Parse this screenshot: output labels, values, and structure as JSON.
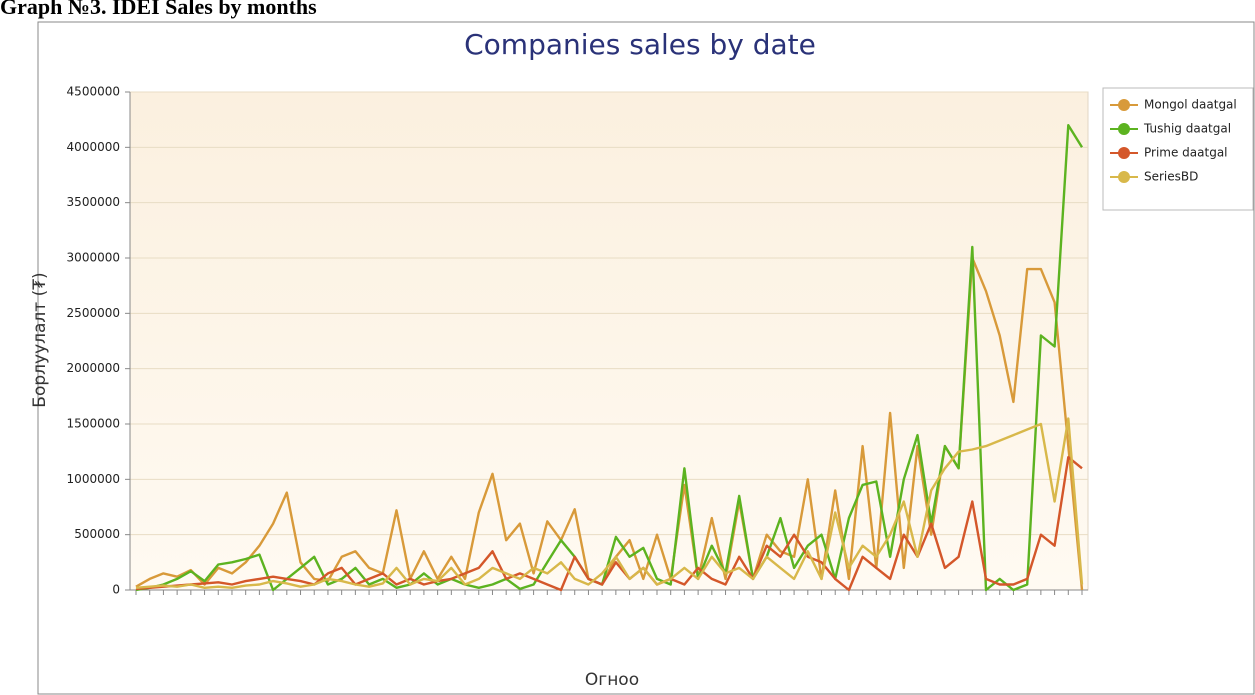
{
  "heading": "Graph №3. IDEI Sales by months",
  "chart_data": {
    "type": "line",
    "title": "Companies sales by date",
    "x_label": "Огноо",
    "y_label": "Борлуулалт (₮)",
    "categories": [
      null,
      null,
      null,
      null,
      null,
      null,
      null,
      null,
      null,
      null,
      null,
      null,
      null,
      null,
      null,
      null,
      null,
      null,
      null,
      null,
      null,
      null,
      null,
      null,
      null,
      null,
      null,
      null,
      null,
      null,
      null,
      null,
      null,
      null,
      null,
      null,
      null,
      null,
      null,
      null,
      null,
      null,
      null,
      null,
      null,
      null,
      null,
      null,
      null,
      null,
      null,
      null,
      null,
      null,
      null,
      null,
      null,
      null,
      null,
      null,
      null,
      null,
      null,
      null,
      null,
      null,
      null,
      null,
      null,
      null
    ],
    "series": [
      {
        "name": "Mongol daatgal",
        "color": "#d89a3a",
        "values": [
          30000,
          100000,
          150000,
          120000,
          180000,
          50000,
          200000,
          150000,
          250000,
          400000,
          600000,
          880000,
          250000,
          100000,
          80000,
          300000,
          350000,
          200000,
          150000,
          720000,
          100000,
          350000,
          100000,
          300000,
          100000,
          700000,
          1050000,
          450000,
          600000,
          150000,
          620000,
          450000,
          730000,
          100000,
          50000,
          300000,
          450000,
          100000,
          500000,
          100000,
          950000,
          100000,
          650000,
          100000,
          800000,
          100000,
          500000,
          350000,
          300000,
          1000000,
          100000,
          900000,
          100000,
          1300000,
          200000,
          1600000,
          200000,
          1300000,
          500000,
          1300000,
          1100000,
          3000000,
          2700000,
          2300000,
          1700000,
          2900000,
          2900000,
          2600000,
          1300000,
          0
        ]
      },
      {
        "name": "Tushig daatgal",
        "color": "#5cb320",
        "values": [
          0,
          20000,
          50000,
          100000,
          170000,
          80000,
          230000,
          250000,
          280000,
          320000,
          0,
          100000,
          200000,
          300000,
          50000,
          100000,
          200000,
          50000,
          100000,
          20000,
          50000,
          150000,
          50000,
          100000,
          50000,
          20000,
          50000,
          100000,
          10000,
          50000,
          250000,
          450000,
          300000,
          100000,
          50000,
          480000,
          300000,
          380000,
          100000,
          50000,
          1100000,
          100000,
          400000,
          150000,
          850000,
          100000,
          300000,
          650000,
          200000,
          400000,
          500000,
          100000,
          650000,
          950000,
          980000,
          300000,
          1000000,
          1400000,
          600000,
          1300000,
          1100000,
          3100000,
          0,
          100000,
          0,
          50000,
          2300000,
          2200000,
          4200000,
          4000000
        ]
      },
      {
        "name": "Prime daatgal",
        "color": "#d4572a",
        "values": [
          10000,
          20000,
          30000,
          40000,
          50000,
          60000,
          70000,
          50000,
          80000,
          100000,
          120000,
          100000,
          80000,
          50000,
          150000,
          200000,
          50000,
          100000,
          150000,
          50000,
          100000,
          50000,
          80000,
          100000,
          150000,
          200000,
          350000,
          100000,
          150000,
          100000,
          50000,
          0,
          300000,
          100000,
          50000,
          250000,
          100000,
          200000,
          50000,
          100000,
          50000,
          200000,
          100000,
          50000,
          300000,
          100000,
          400000,
          300000,
          500000,
          300000,
          250000,
          100000,
          0,
          300000,
          200000,
          100000,
          500000,
          300000,
          600000,
          200000,
          300000,
          800000,
          100000,
          50000,
          50000,
          100000,
          500000,
          400000,
          1200000,
          1100000
        ]
      },
      {
        "name": "SeriesBD",
        "color": "#d8b84a",
        "values": [
          20000,
          30000,
          40000,
          30000,
          50000,
          20000,
          30000,
          20000,
          40000,
          50000,
          80000,
          60000,
          30000,
          50000,
          100000,
          80000,
          50000,
          30000,
          60000,
          200000,
          50000,
          100000,
          80000,
          200000,
          50000,
          100000,
          200000,
          150000,
          100000,
          200000,
          150000,
          250000,
          100000,
          50000,
          150000,
          300000,
          100000,
          200000,
          50000,
          100000,
          200000,
          100000,
          300000,
          150000,
          200000,
          100000,
          300000,
          200000,
          100000,
          350000,
          100000,
          700000,
          200000,
          400000,
          300000,
          500000,
          800000,
          300000,
          900000,
          1100000,
          1250000,
          1270000,
          1300000,
          1350000,
          1400000,
          1450000,
          1500000,
          800000,
          1550000,
          50000
        ]
      }
    ],
    "ylim": [
      0,
      4500000
    ],
    "yticks": [
      0,
      500000,
      1000000,
      1500000,
      2000000,
      2500000,
      3000000,
      3500000,
      4000000,
      4500000
    ],
    "grid": true,
    "legend": "right"
  }
}
